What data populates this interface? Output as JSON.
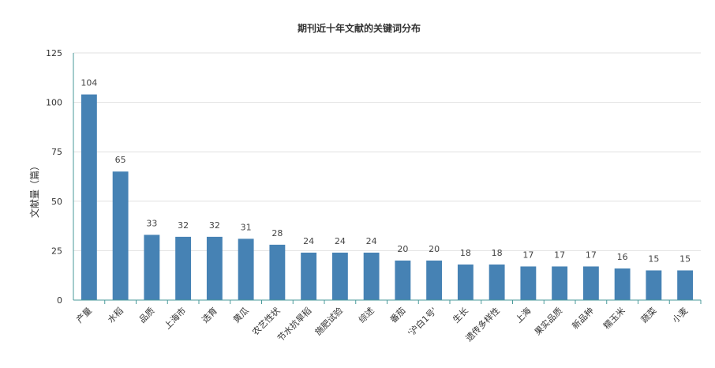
{
  "chart_data": {
    "type": "bar",
    "title": "期刊近十年文献的关键词分布",
    "ylabel": "文献量（篇）",
    "xlabel": "",
    "ylim": [
      0,
      125
    ],
    "yticks": [
      0,
      25,
      50,
      75,
      100,
      125
    ],
    "grid": true,
    "categories": [
      "产量",
      "水稻",
      "品质",
      "上海市",
      "选育",
      "黄瓜",
      "农艺性状",
      "节水抗旱稻",
      "施肥试验",
      "综述",
      "番茄",
      "'沪白1号'",
      "生长",
      "遗传多样性",
      "上海",
      "果实品质",
      "新品种",
      "糯玉米",
      "蔬菜",
      "小麦"
    ],
    "values": [
      104,
      65,
      33,
      32,
      32,
      31,
      28,
      24,
      24,
      24,
      20,
      20,
      18,
      18,
      17,
      17,
      17,
      16,
      15,
      15
    ],
    "colors": {
      "bar": "#4682B4",
      "axis": "#4a9a9a",
      "grid": "#e0e0e0",
      "text": "#333333"
    }
  }
}
